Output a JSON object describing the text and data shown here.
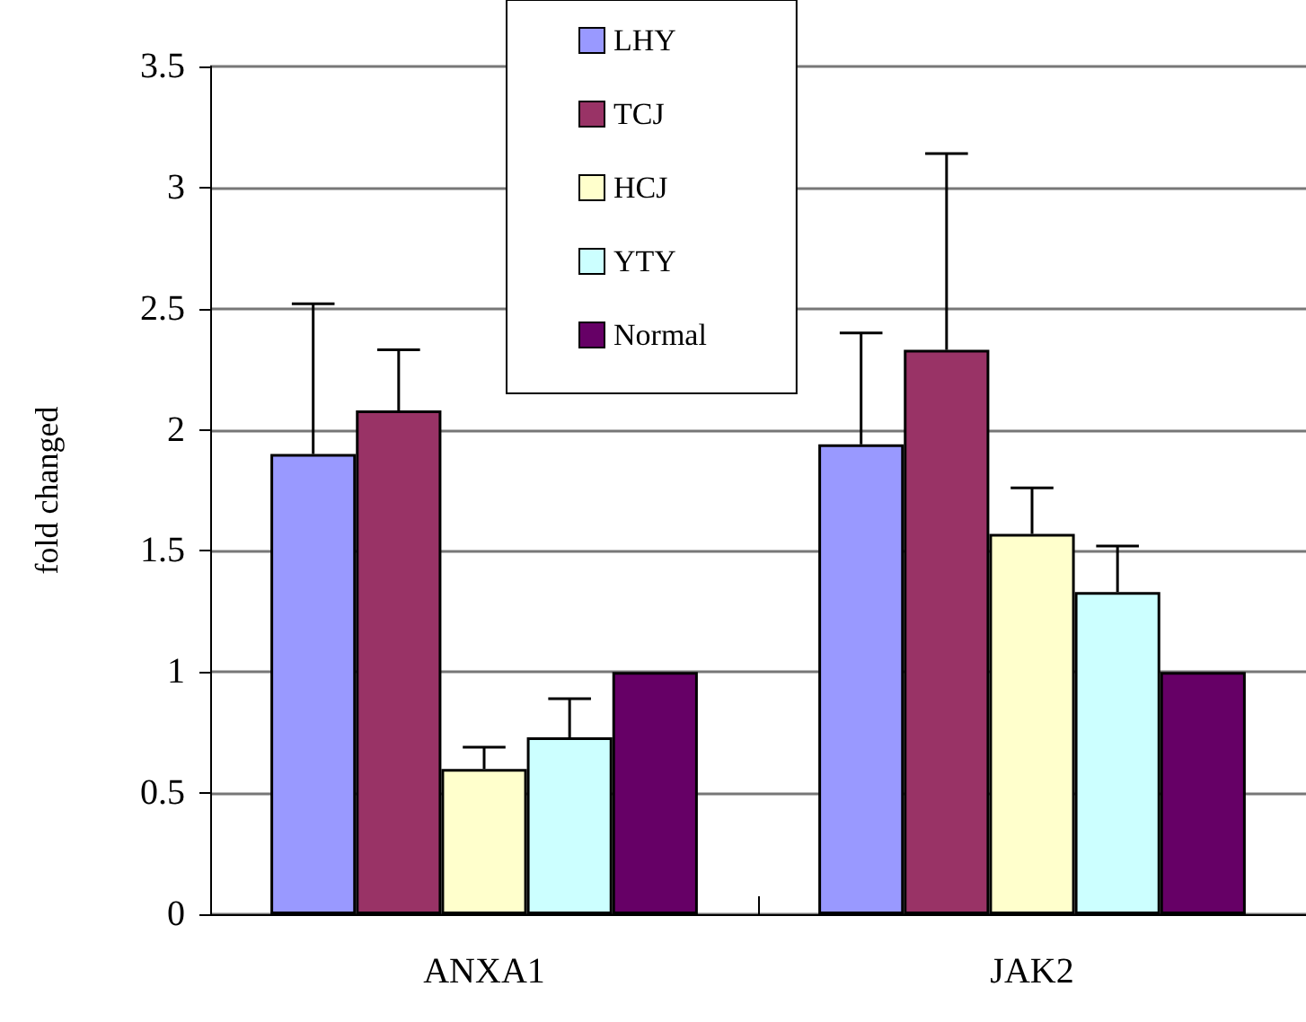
{
  "chart_data": {
    "type": "bar",
    "ylabel": "fold changed",
    "categories": [
      "ANXA1",
      "JAK2"
    ],
    "series": [
      {
        "name": "LHY",
        "color": "#9999ff",
        "values": [
          1.9,
          1.94
        ],
        "errors": [
          [
            1.9,
            2.52
          ],
          [
            1.94,
            2.4
          ]
        ]
      },
      {
        "name": "TCJ",
        "color": "#993366",
        "values": [
          2.08,
          2.33
        ],
        "errors": [
          [
            2.08,
            2.33
          ],
          [
            2.33,
            3.14
          ]
        ]
      },
      {
        "name": "HCJ",
        "color": "#ffffcc",
        "values": [
          0.6,
          1.57
        ],
        "errors": [
          [
            0.6,
            0.69
          ],
          [
            1.57,
            1.76
          ]
        ]
      },
      {
        "name": "YTY",
        "color": "#ccffff",
        "values": [
          0.73,
          1.33
        ],
        "errors": [
          [
            0.73,
            0.89
          ],
          [
            1.33,
            1.52
          ]
        ]
      },
      {
        "name": "Normal",
        "color": "#660066",
        "values": [
          1.0,
          1.0
        ]
      }
    ],
    "ylim": [
      0,
      3.5
    ],
    "yticks": [
      0,
      0.5,
      1,
      1.5,
      2,
      2.5,
      3,
      3.5
    ],
    "grid": "y",
    "legend": "top"
  }
}
